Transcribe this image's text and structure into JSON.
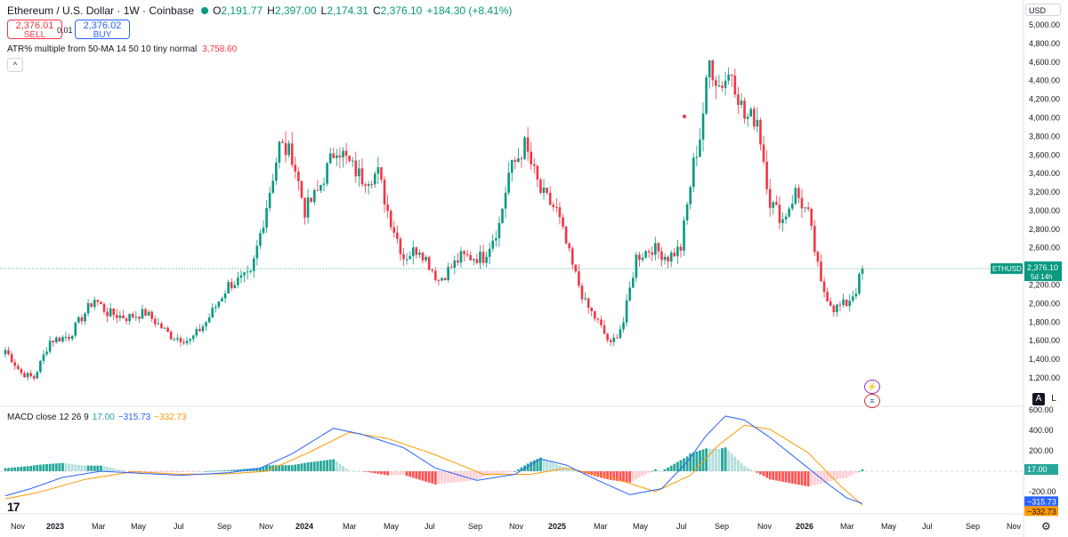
{
  "header": {
    "title": "Ethereum / U.S. Dollar · 1W · Coinbase",
    "ohlc": [
      {
        "k": "O",
        "v": "2,191.77"
      },
      {
        "k": "H",
        "v": "2,397.00"
      },
      {
        "k": "L",
        "v": "2,174.31"
      },
      {
        "k": "C",
        "v": "2,376.10"
      }
    ],
    "change": "+184.30 (+8.41%)"
  },
  "trade": {
    "sell_price": "2,376.01",
    "sell_label": "SELL",
    "spread": "0.01",
    "buy_price": "2,376.02",
    "buy_label": "BUY"
  },
  "atr": {
    "label": "ATR% multiple from 50-MA 14 50 10 tiny normal",
    "value": "3,758.60"
  },
  "collapse_icon": "^",
  "currency": "USD",
  "scale_buttons": {
    "auto": "A",
    "log": "L"
  },
  "price_label": {
    "symbol": "ETHUSD",
    "price": "2,376.10",
    "countdown": "5d 14h"
  },
  "macd_legend": {
    "label": "MACD close 12 26 9",
    "hist": "17.00",
    "macd": "−315.73",
    "signal": "−332.73"
  },
  "logo": "17",
  "icons": {
    "lightning": "lightning-icon",
    "flag": "us-flag-icon",
    "settings": "gear-icon"
  },
  "colors": {
    "up": "#089981",
    "down": "#f23645",
    "macd": "#2962ff",
    "signal": "#ff9800",
    "hist_up": "#26a69a",
    "hist_up_light": "#b2dfdb",
    "hist_down": "#ff5252",
    "hist_down_light": "#ffcdd2"
  },
  "chart_data": [
    {
      "type": "candlestick",
      "title": "Ethereum / U.S. Dollar · 1W · Coinbase",
      "ylim": [
        1100,
        5050
      ],
      "y_ticks": [
        "1,200.00",
        "1,400.00",
        "1,600.00",
        "1,800.00",
        "2,000.00",
        "2,200.00",
        "2,400.00",
        "2,600.00",
        "2,800.00",
        "3,000.00",
        "3,200.00",
        "3,400.00",
        "3,600.00",
        "3,800.00",
        "4,000.00",
        "4,200.00",
        "4,400.00",
        "4,600.00",
        "4,800.00",
        "5,000.00"
      ],
      "x_labels": [
        "Nov",
        "2023",
        "Mar",
        "May",
        "Jul",
        "Sep",
        "Nov",
        "2024",
        "Mar",
        "May",
        "Jul",
        "Sep",
        "Nov",
        "2025",
        "Mar",
        "May",
        "Jul",
        "Sep",
        "Nov",
        "2026",
        "Mar",
        "May",
        "Jul",
        "Sep",
        "Nov"
      ],
      "anchors": [
        [
          0,
          1500
        ],
        [
          5,
          1250
        ],
        [
          9,
          1200
        ],
        [
          14,
          1600
        ],
        [
          20,
          1650
        ],
        [
          28,
          2050
        ],
        [
          32,
          1900
        ],
        [
          38,
          1850
        ],
        [
          44,
          1900
        ],
        [
          52,
          1650
        ],
        [
          58,
          1600
        ],
        [
          63,
          1800
        ],
        [
          70,
          2200
        ],
        [
          77,
          2300
        ],
        [
          81,
          2900
        ],
        [
          86,
          3700
        ],
        [
          90,
          3600
        ],
        [
          94,
          3000
        ],
        [
          98,
          3200
        ],
        [
          104,
          3700
        ],
        [
          108,
          3500
        ],
        [
          112,
          3350
        ],
        [
          117,
          3400
        ],
        [
          120,
          3000
        ],
        [
          125,
          2500
        ],
        [
          130,
          2600
        ],
        [
          136,
          2250
        ],
        [
          143,
          2500
        ],
        [
          150,
          2500
        ],
        [
          155,
          2850
        ],
        [
          158,
          3400
        ],
        [
          163,
          3700
        ],
        [
          168,
          3200
        ],
        [
          173,
          3000
        ],
        [
          178,
          2400
        ],
        [
          182,
          2000
        ],
        [
          186,
          1800
        ],
        [
          190,
          1550
        ],
        [
          194,
          1800
        ],
        [
          198,
          2500
        ],
        [
          203,
          2600
        ],
        [
          208,
          2500
        ],
        [
          212,
          2600
        ],
        [
          216,
          3500
        ],
        [
          218,
          3800
        ],
        [
          221,
          4600
        ],
        [
          224,
          4350
        ],
        [
          228,
          4500
        ],
        [
          232,
          4000
        ],
        [
          236,
          4000
        ],
        [
          240,
          3100
        ],
        [
          244,
          2900
        ],
        [
          248,
          3200
        ],
        [
          252,
          2950
        ],
        [
          256,
          2200
        ],
        [
          260,
          1950
        ],
        [
          264,
          2000
        ],
        [
          267,
          2150
        ],
        [
          269,
          2376.1
        ]
      ],
      "last_price": 2376.1
    },
    {
      "type": "macd",
      "label": "MACD close 12 26 9",
      "ylim": [
        -400,
        650
      ],
      "y_ticks": [
        "600.00",
        "400.00",
        "200.00",
        "-200.00"
      ],
      "macd_anchors": [
        [
          0,
          -240
        ],
        [
          8,
          -170
        ],
        [
          18,
          -60
        ],
        [
          30,
          0
        ],
        [
          42,
          -20
        ],
        [
          55,
          -40
        ],
        [
          70,
          -15
        ],
        [
          80,
          30
        ],
        [
          90,
          170
        ],
        [
          103,
          420
        ],
        [
          112,
          360
        ],
        [
          125,
          230
        ],
        [
          135,
          30
        ],
        [
          148,
          -90
        ],
        [
          160,
          -30
        ],
        [
          168,
          120
        ],
        [
          176,
          60
        ],
        [
          186,
          -90
        ],
        [
          196,
          -230
        ],
        [
          206,
          -170
        ],
        [
          214,
          90
        ],
        [
          220,
          350
        ],
        [
          226,
          540
        ],
        [
          232,
          500
        ],
        [
          240,
          330
        ],
        [
          250,
          80
        ],
        [
          258,
          -120
        ],
        [
          264,
          -260
        ],
        [
          269,
          -315.73
        ]
      ],
      "signal_anchors": [
        [
          0,
          -270
        ],
        [
          10,
          -210
        ],
        [
          25,
          -80
        ],
        [
          40,
          -5
        ],
        [
          55,
          -30
        ],
        [
          70,
          -25
        ],
        [
          82,
          0
        ],
        [
          95,
          180
        ],
        [
          108,
          380
        ],
        [
          120,
          320
        ],
        [
          135,
          160
        ],
        [
          150,
          -30
        ],
        [
          165,
          -30
        ],
        [
          176,
          30
        ],
        [
          190,
          -60
        ],
        [
          204,
          -200
        ],
        [
          215,
          -40
        ],
        [
          224,
          260
        ],
        [
          232,
          450
        ],
        [
          240,
          410
        ],
        [
          252,
          180
        ],
        [
          262,
          -140
        ],
        [
          269,
          -332.73
        ]
      ],
      "last_hist": 17.0,
      "last_macd": -315.73,
      "last_signal": -332.73
    }
  ]
}
